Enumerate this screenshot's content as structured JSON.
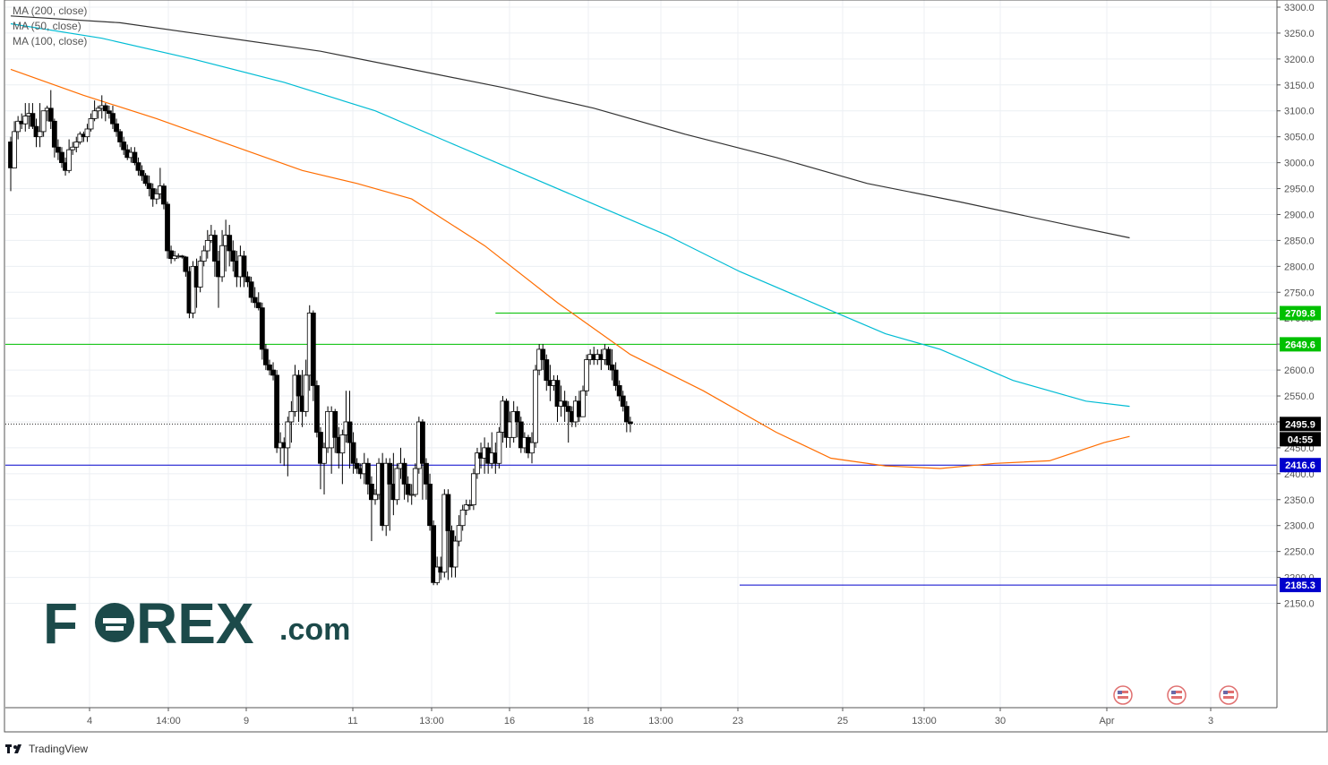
{
  "chart_data": {
    "type": "candlestick",
    "y_ticks": [
      3300,
      3250,
      3200,
      3150,
      3100,
      3050,
      3000,
      2950,
      2900,
      2850,
      2800,
      2750,
      2700,
      2650,
      2600,
      2550,
      2500,
      2450,
      2400,
      2350,
      2300,
      2250,
      2200,
      2150
    ],
    "ylim": [
      2120,
      3310
    ],
    "x_tick_labels": [
      "4",
      "14:00",
      "9",
      "11",
      "13:00",
      "16",
      "18",
      "13:00",
      "23",
      "25",
      "13:00",
      "30",
      "Apr",
      "3"
    ],
    "indicators": [
      {
        "name": "MA (200, close)",
        "color": "#333333",
        "values": [
          [
            0,
            3283
          ],
          [
            30,
            3270
          ],
          [
            55,
            3245
          ],
          [
            85,
            3215
          ],
          [
            110,
            3180
          ],
          [
            135,
            3145
          ],
          [
            160,
            3105
          ],
          [
            185,
            3055
          ],
          [
            210,
            3010
          ],
          [
            235,
            2960
          ],
          [
            260,
            2925
          ],
          [
            290,
            2880
          ],
          [
            307,
            2855
          ]
        ]
      },
      {
        "name": "MA (50, close)",
        "color": "#00bcd4",
        "values": [
          [
            0,
            3268
          ],
          [
            25,
            3240
          ],
          [
            50,
            3200
          ],
          [
            75,
            3155
          ],
          [
            100,
            3100
          ],
          [
            120,
            3040
          ],
          [
            140,
            2980
          ],
          [
            160,
            2920
          ],
          [
            180,
            2860
          ],
          [
            200,
            2790
          ],
          [
            220,
            2730
          ],
          [
            240,
            2670
          ],
          [
            255,
            2640
          ],
          [
            275,
            2580
          ],
          [
            295,
            2540
          ],
          [
            307,
            2530
          ]
        ]
      },
      {
        "name": "MA (100, close)",
        "color": "#ff6d00",
        "values": [
          [
            0,
            3180
          ],
          [
            20,
            3130
          ],
          [
            40,
            3085
          ],
          [
            60,
            3035
          ],
          [
            80,
            2985
          ],
          [
            95,
            2960
          ],
          [
            110,
            2930
          ],
          [
            130,
            2840
          ],
          [
            150,
            2730
          ],
          [
            170,
            2630
          ],
          [
            190,
            2560
          ],
          [
            210,
            2480
          ],
          [
            225,
            2430
          ],
          [
            240,
            2415
          ],
          [
            255,
            2410
          ],
          [
            270,
            2420
          ],
          [
            285,
            2425
          ],
          [
            300,
            2460
          ],
          [
            307,
            2472
          ]
        ]
      }
    ],
    "horizontal_levels": [
      {
        "value": 2709.8,
        "label": "2709.8",
        "color": "#00c000",
        "start": 133
      },
      {
        "value": 2649.6,
        "label": "2649.6",
        "color": "#00c000",
        "start": 0
      },
      {
        "value": 2416.6,
        "label": "2416.6",
        "color": "#0000cc",
        "start": 0
      },
      {
        "value": 2185.3,
        "label": "2185.3",
        "color": "#0000cc",
        "start": 200
      }
    ],
    "last_price": {
      "value": 2495.9,
      "label": "2495.9"
    },
    "countdown": "04:55",
    "candles": [
      [
        3040,
        2990,
        3050,
        2945
      ],
      [
        2990,
        3060,
        3080,
        2990
      ],
      [
        3060,
        3080,
        3090,
        3045
      ],
      [
        3080,
        3075,
        3095,
        3065
      ],
      [
        3075,
        3090,
        3115,
        3060
      ],
      [
        3090,
        3095,
        3115,
        3065
      ],
      [
        3095,
        3070,
        3115,
        3065
      ],
      [
        3070,
        3050,
        3085,
        3030
      ],
      [
        3050,
        3060,
        3115,
        3030
      ],
      [
        3060,
        3100,
        3100,
        3050
      ],
      [
        3100,
        3105,
        3110,
        3080
      ],
      [
        3105,
        3080,
        3140,
        3065
      ],
      [
        3080,
        3030,
        3085,
        3010
      ],
      [
        3030,
        3020,
        3045,
        3005
      ],
      [
        3020,
        3000,
        3030,
        2990
      ],
      [
        3000,
        2985,
        3010,
        2975
      ],
      [
        2985,
        3025,
        3045,
        2980
      ],
      [
        3025,
        3030,
        3040,
        3015
      ],
      [
        3030,
        3040,
        3050,
        3020
      ],
      [
        3040,
        3055,
        3060,
        3035
      ],
      [
        3055,
        3050,
        3060,
        3040
      ],
      [
        3050,
        3065,
        3075,
        3040
      ],
      [
        3065,
        3085,
        3095,
        3060
      ],
      [
        3085,
        3100,
        3120,
        3080
      ],
      [
        3100,
        3105,
        3110,
        3085
      ],
      [
        3105,
        3110,
        3130,
        3085
      ],
      [
        3110,
        3100,
        3115,
        3080
      ],
      [
        3100,
        3095,
        3110,
        3085
      ],
      [
        3095,
        3075,
        3110,
        3065
      ],
      [
        3075,
        3060,
        3085,
        3050
      ],
      [
        3060,
        3040,
        3065,
        3030
      ],
      [
        3040,
        3025,
        3050,
        3015
      ],
      [
        3025,
        3010,
        3035,
        3005
      ],
      [
        3010,
        3020,
        3030,
        3000
      ],
      [
        3020,
        3000,
        3030,
        2995
      ],
      [
        3000,
        2985,
        3010,
        2975
      ],
      [
        2985,
        2975,
        2995,
        2965
      ],
      [
        2975,
        2960,
        2980,
        2955
      ],
      [
        2960,
        2950,
        2975,
        2935
      ],
      [
        2950,
        2930,
        2960,
        2915
      ],
      [
        2930,
        2940,
        2950,
        2920
      ],
      [
        2940,
        2955,
        2990,
        2930
      ],
      [
        2955,
        2920,
        2960,
        2910
      ],
      [
        2920,
        2830,
        2925,
        2815
      ],
      [
        2830,
        2815,
        2840,
        2805
      ],
      [
        2815,
        2820,
        2830,
        2810
      ],
      [
        2820,
        2820,
        2825,
        2815
      ],
      [
        2820,
        2818,
        2822,
        2815
      ],
      [
        2818,
        2790,
        2820,
        2780
      ],
      [
        2790,
        2710,
        2800,
        2700
      ],
      [
        2710,
        2800,
        2810,
        2700
      ],
      [
        2800,
        2760,
        2815,
        2720
      ],
      [
        2760,
        2810,
        2820,
        2750
      ],
      [
        2810,
        2830,
        2840,
        2800
      ],
      [
        2830,
        2850,
        2870,
        2815
      ],
      [
        2850,
        2860,
        2880,
        2845
      ],
      [
        2860,
        2810,
        2870,
        2780
      ],
      [
        2810,
        2780,
        2830,
        2720
      ],
      [
        2780,
        2840,
        2870,
        2770
      ],
      [
        2840,
        2860,
        2890,
        2790
      ],
      [
        2860,
        2830,
        2880,
        2800
      ],
      [
        2830,
        2810,
        2850,
        2790
      ],
      [
        2810,
        2780,
        2830,
        2760
      ],
      [
        2780,
        2820,
        2840,
        2760
      ],
      [
        2820,
        2780,
        2830,
        2760
      ],
      [
        2780,
        2770,
        2790,
        2760
      ],
      [
        2770,
        2740,
        2780,
        2730
      ],
      [
        2740,
        2730,
        2760,
        2720
      ],
      [
        2730,
        2720,
        2750,
        2715
      ],
      [
        2720,
        2640,
        2730,
        2620
      ],
      [
        2640,
        2610,
        2650,
        2600
      ],
      [
        2610,
        2600,
        2620,
        2590
      ],
      [
        2600,
        2590,
        2615,
        2580
      ],
      [
        2590,
        2450,
        2600,
        2440
      ],
      [
        2450,
        2460,
        2480,
        2420
      ],
      [
        2460,
        2450,
        2470,
        2415
      ],
      [
        2450,
        2500,
        2510,
        2395
      ],
      [
        2500,
        2520,
        2540,
        2460
      ],
      [
        2520,
        2590,
        2610,
        2510
      ],
      [
        2590,
        2550,
        2600,
        2500
      ],
      [
        2550,
        2520,
        2600,
        2490
      ],
      [
        2520,
        2590,
        2620,
        2510
      ],
      [
        2590,
        2710,
        2725,
        2560
      ],
      [
        2710,
        2570,
        2715,
        2540
      ],
      [
        2570,
        2480,
        2580,
        2470
      ],
      [
        2480,
        2420,
        2490,
        2370
      ],
      [
        2420,
        2450,
        2460,
        2360
      ],
      [
        2450,
        2520,
        2530,
        2440
      ],
      [
        2450,
        2520,
        2530,
        2400
      ],
      [
        2520,
        2470,
        2525,
        2440
      ],
      [
        2470,
        2440,
        2490,
        2410
      ],
      [
        2440,
        2475,
        2485,
        2380
      ],
      [
        2475,
        2500,
        2560,
        2460
      ],
      [
        2500,
        2460,
        2560,
        2410
      ],
      [
        2460,
        2420,
        2480,
        2400
      ],
      [
        2420,
        2410,
        2430,
        2400
      ],
      [
        2410,
        2400,
        2420,
        2390
      ],
      [
        2400,
        2420,
        2440,
        2380
      ],
      [
        2420,
        2380,
        2430,
        2360
      ],
      [
        2380,
        2350,
        2395,
        2270
      ],
      [
        2350,
        2360,
        2370,
        2340
      ],
      [
        2360,
        2420,
        2430,
        2350
      ],
      [
        2420,
        2300,
        2440,
        2290
      ],
      [
        2300,
        2420,
        2430,
        2280
      ],
      [
        2420,
        2380,
        2430,
        2290
      ],
      [
        2380,
        2350,
        2440,
        2320
      ],
      [
        2350,
        2410,
        2420,
        2340
      ],
      [
        2410,
        2420,
        2450,
        2390
      ],
      [
        2420,
        2380,
        2430,
        2350
      ],
      [
        2380,
        2360,
        2395,
        2345
      ],
      [
        2360,
        2360,
        2380,
        2340
      ],
      [
        2360,
        2410,
        2420,
        2355
      ],
      [
        2410,
        2500,
        2510,
        2400
      ],
      [
        2500,
        2420,
        2505,
        2350
      ],
      [
        2420,
        2380,
        2430,
        2350
      ],
      [
        2380,
        2300,
        2400,
        2290
      ],
      [
        2300,
        2190,
        2310,
        2185
      ],
      [
        2190,
        2220,
        2240,
        2185
      ],
      [
        2220,
        2210,
        2240,
        2195
      ],
      [
        2210,
        2360,
        2370,
        2200
      ],
      [
        2360,
        2290,
        2370,
        2195
      ],
      [
        2290,
        2220,
        2300,
        2200
      ],
      [
        2220,
        2270,
        2280,
        2200
      ],
      [
        2270,
        2300,
        2320,
        2260
      ],
      [
        2300,
        2330,
        2340,
        2290
      ],
      [
        2330,
        2340,
        2350,
        2320
      ],
      [
        2340,
        2340,
        2350,
        2330
      ],
      [
        2340,
        2400,
        2410,
        2330
      ],
      [
        2400,
        2440,
        2450,
        2390
      ],
      [
        2440,
        2430,
        2460,
        2410
      ],
      [
        2430,
        2450,
        2470,
        2400
      ],
      [
        2450,
        2420,
        2460,
        2400
      ],
      [
        2420,
        2440,
        2480,
        2410
      ],
      [
        2440,
        2420,
        2460,
        2400
      ],
      [
        2420,
        2480,
        2490,
        2410
      ],
      [
        2480,
        2540,
        2550,
        2460
      ],
      [
        2540,
        2470,
        2545,
        2450
      ],
      [
        2470,
        2500,
        2520,
        2450
      ],
      [
        2470,
        2520,
        2540,
        2460
      ],
      [
        2520,
        2500,
        2530,
        2470
      ],
      [
        2500,
        2450,
        2510,
        2440
      ],
      [
        2450,
        2470,
        2480,
        2440
      ],
      [
        2470,
        2440,
        2475,
        2430
      ],
      [
        2440,
        2460,
        2480,
        2420
      ],
      [
        2460,
        2600,
        2610,
        2450
      ],
      [
        2600,
        2640,
        2650,
        2590
      ],
      [
        2640,
        2620,
        2650,
        2600
      ],
      [
        2620,
        2580,
        2630,
        2560
      ],
      [
        2580,
        2570,
        2610,
        2540
      ],
      [
        2570,
        2580,
        2590,
        2560
      ],
      [
        2580,
        2530,
        2590,
        2500
      ],
      [
        2530,
        2540,
        2570,
        2510
      ],
      [
        2540,
        2530,
        2560,
        2500
      ],
      [
        2530,
        2520,
        2540,
        2460
      ],
      [
        2520,
        2500,
        2530,
        2490
      ],
      [
        2500,
        2540,
        2550,
        2490
      ],
      [
        2540,
        2510,
        2560,
        2500
      ],
      [
        2510,
        2560,
        2570,
        2510
      ],
      [
        2560,
        2620,
        2630,
        2550
      ],
      [
        2620,
        2630,
        2640,
        2610
      ],
      [
        2630,
        2620,
        2645,
        2610
      ],
      [
        2620,
        2630,
        2640,
        2610
      ],
      [
        2630,
        2620,
        2640,
        2600
      ],
      [
        2620,
        2640,
        2650,
        2610
      ],
      [
        2640,
        2610,
        2645,
        2600
      ],
      [
        2610,
        2600,
        2640,
        2580
      ],
      [
        2600,
        2570,
        2615,
        2560
      ],
      [
        2570,
        2550,
        2580,
        2540
      ],
      [
        2550,
        2530,
        2560,
        2520
      ],
      [
        2530,
        2500,
        2540,
        2480
      ],
      [
        2500,
        2497,
        2510,
        2480
      ]
    ]
  },
  "legend": {
    "ma200": "MA (200, close)",
    "ma50": "MA (50, close)",
    "ma100": "MA (100, close)"
  },
  "brand": {
    "logo_text": "FOREX.com",
    "tradingview": "TradingView"
  },
  "colors": {
    "up_fill": "#ffffff",
    "down_fill": "#000000",
    "grid": "#e6e9ef",
    "axis_text": "#555555"
  }
}
